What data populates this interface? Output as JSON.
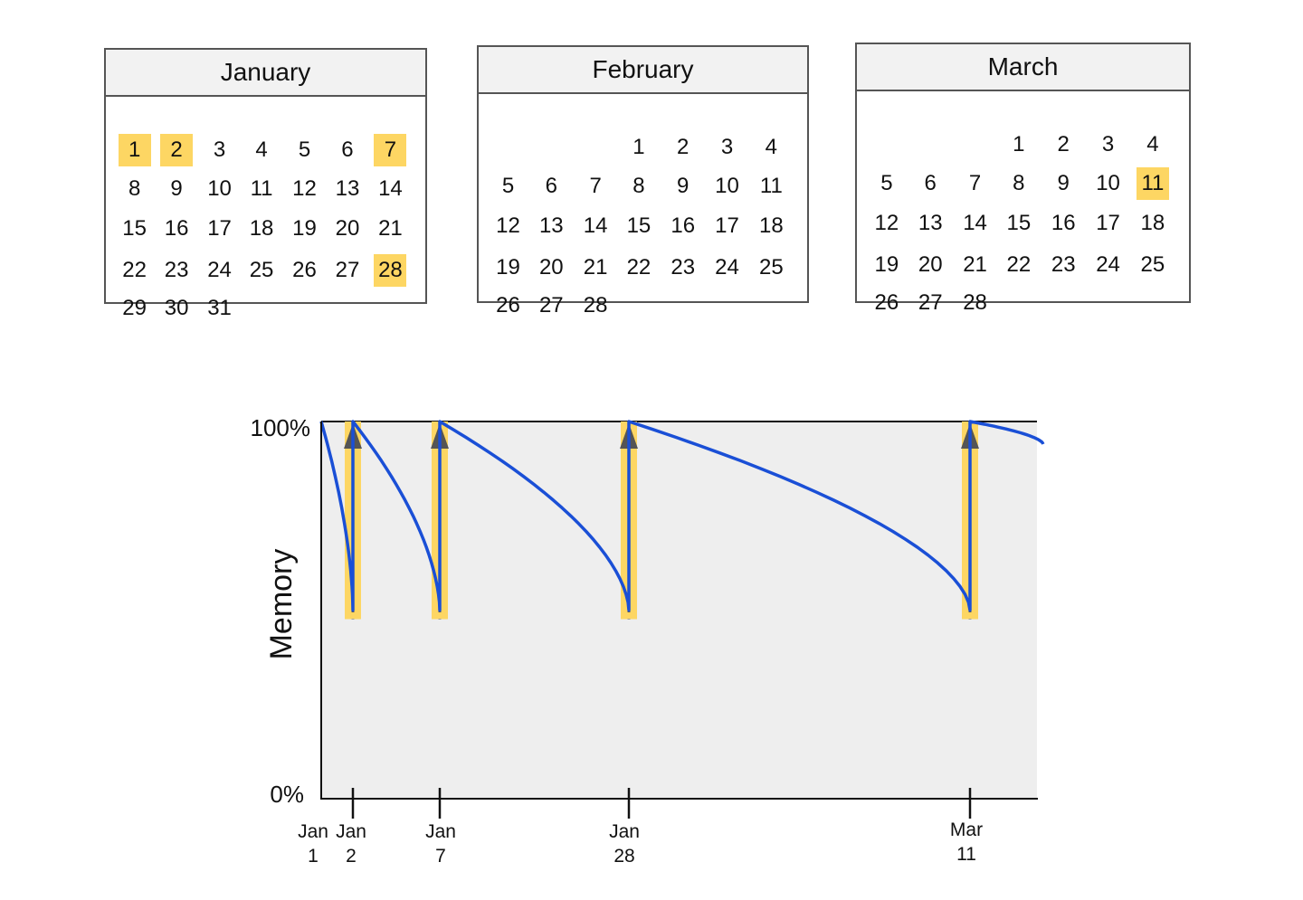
{
  "calendars": [
    {
      "month": "January",
      "start_offset": 0,
      "days": 31,
      "highlighted": [
        1,
        2,
        7,
        28
      ]
    },
    {
      "month": "February",
      "start_offset": 3,
      "days": 28,
      "highlighted": []
    },
    {
      "month": "March",
      "start_offset": 3,
      "days": 28,
      "highlighted": [
        11
      ]
    }
  ],
  "colors": {
    "highlight": "#fdd663",
    "curve": "#1a4fd6",
    "plot_bg": "#eeeeee",
    "marker": "#555555"
  },
  "chart_data": {
    "type": "line",
    "ylabel": "Memory",
    "y_ticks": [
      "100%",
      "0%"
    ],
    "ylim": [
      0,
      100
    ],
    "x_ticks": [
      {
        "day": 1,
        "label_top": "Jan",
        "label_bottom": "1"
      },
      {
        "day": 2,
        "label_top": "Jan",
        "label_bottom": "2"
      },
      {
        "day": 7,
        "label_top": "Jan",
        "label_bottom": "7"
      },
      {
        "day": 28,
        "label_top": "Jan",
        "label_bottom": "28"
      },
      {
        "day": 70,
        "label_top": "Mar",
        "label_bottom": "11"
      }
    ],
    "review_days": [
      2,
      7,
      28,
      70
    ],
    "reset_level": 50,
    "series": [
      {
        "values": [
          {
            "x": 1,
            "y": 100
          },
          {
            "x": 2,
            "y": 50
          },
          {
            "x": 2,
            "y": 100
          },
          {
            "x": 7,
            "y": 50
          },
          {
            "x": 7,
            "y": 100
          },
          {
            "x": 28,
            "y": 50
          },
          {
            "x": 28,
            "y": 100
          },
          {
            "x": 70,
            "y": 50
          },
          {
            "x": 70,
            "y": 100
          },
          {
            "x": 79,
            "y": 94
          }
        ]
      }
    ]
  }
}
